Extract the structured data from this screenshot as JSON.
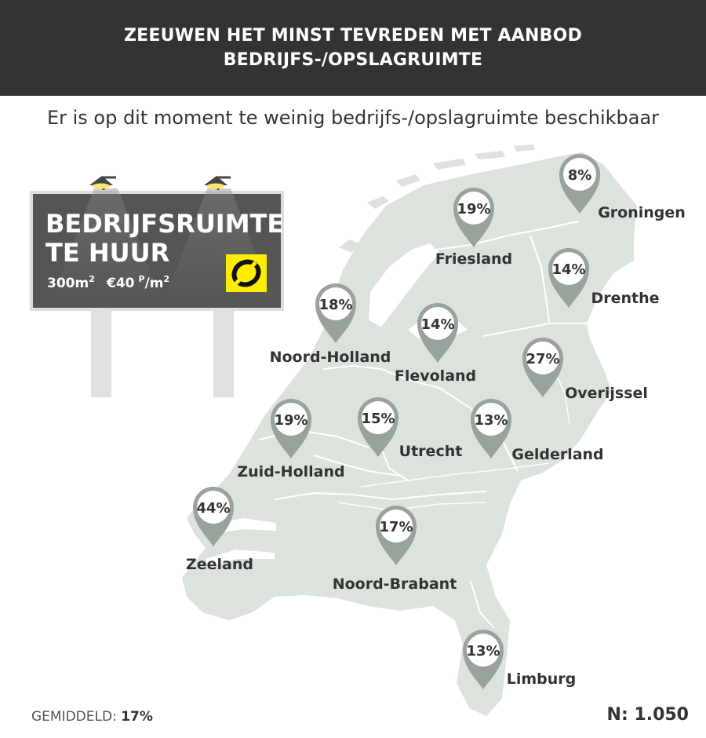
{
  "title": {
    "line1": "ZEEUWEN HET MINST TEVREDEN MET AANBOD",
    "line2": "BEDRIJFS-/OPSLAGRUIMTE"
  },
  "subtitle": "Er is op dit moment te weinig bedrijfs-/opslagruimte beschikbaar",
  "billboard": {
    "line1": "BEDRIJFSRUIMTE",
    "line2": "TE HUUR",
    "area": "300m",
    "area_sup": "2",
    "price": "€40",
    "price_unit_sup": "P",
    "price_unit": "/m",
    "price_unit_exp": "2",
    "logo_icon": "yellow-logo-icon",
    "logo_color": "#ffed00"
  },
  "colors": {
    "header_bg": "#333333",
    "map_fill": "#dbe3dc",
    "marker": "#9aa29c",
    "text": "#333333"
  },
  "chart_data": {
    "type": "map",
    "regions": [
      {
        "name": "Groningen",
        "value": "8%"
      },
      {
        "name": "Friesland",
        "value": "19%"
      },
      {
        "name": "Drenthe",
        "value": "14%"
      },
      {
        "name": "Noord-Holland",
        "value": "18%"
      },
      {
        "name": "Flevoland",
        "value": "14%"
      },
      {
        "name": "Overijssel",
        "value": "27%"
      },
      {
        "name": "Zuid-Holland",
        "value": "19%"
      },
      {
        "name": "Utrecht",
        "value": "15%"
      },
      {
        "name": "Gelderland",
        "value": "13%"
      },
      {
        "name": "Zeeland",
        "value": "44%"
      },
      {
        "name": "Noord-Brabant",
        "value": "17%"
      },
      {
        "name": "Limburg",
        "value": "13%"
      }
    ]
  },
  "footer": {
    "average_label": "GEMIDDELD: ",
    "average_value": "17%",
    "sample": "N: 1.050"
  }
}
